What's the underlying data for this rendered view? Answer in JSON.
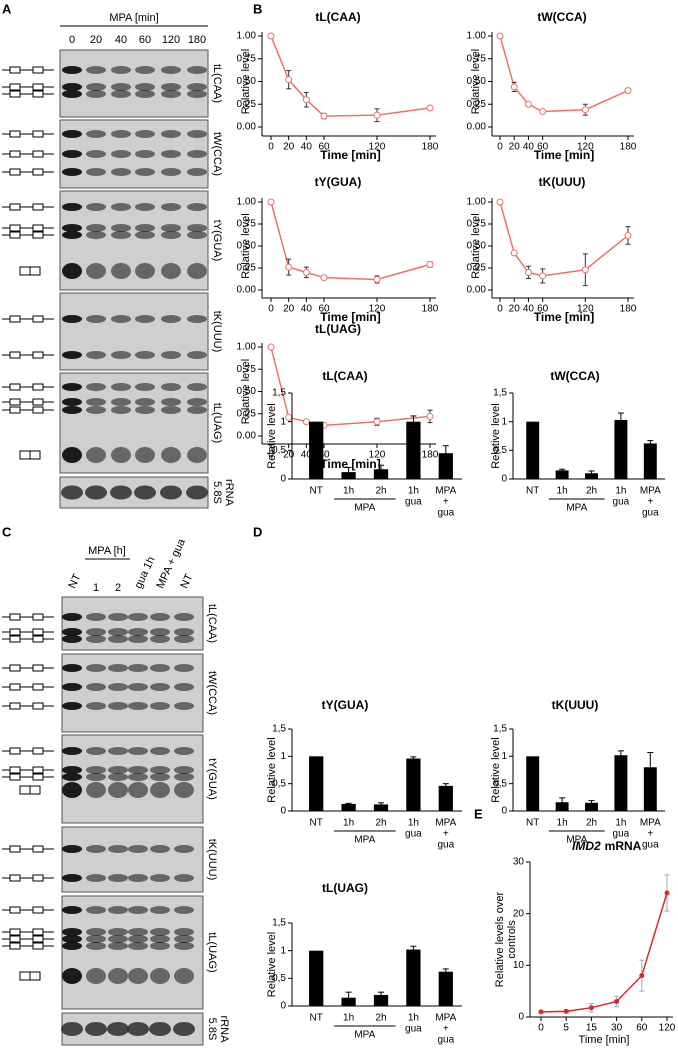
{
  "panel_labels": [
    "A",
    "B",
    "C",
    "D",
    "E"
  ],
  "blots_a": {
    "header": "MPA [min]",
    "lanes": [
      "0",
      "20",
      "40",
      "60",
      "120",
      "180"
    ],
    "bands": [
      [
        "tL(CAA)"
      ],
      [
        "tW(CCA)"
      ],
      [
        "tY(GUA)"
      ],
      [
        "tK(UUU)"
      ],
      [
        "tL(UAG)"
      ],
      [
        "5.8S",
        "rRNA"
      ]
    ]
  },
  "blots_c": {
    "header": "MPA [h]",
    "lanes": [
      "NT",
      "1",
      "2",
      "gua 1h",
      "MPA + gua",
      "NT"
    ],
    "bands": [
      [
        "tL(CAA)"
      ],
      [
        "tW(CCA)"
      ],
      [
        "tY(GUA)"
      ],
      [
        "tK(UUU)"
      ],
      [
        "tL(UAG)"
      ],
      [
        "5.8S",
        "rRNA"
      ]
    ]
  },
  "chart_data": [
    {
      "type": "line",
      "title": "tL(CAA)",
      "xlabel": "Time [min]",
      "ylabel": "Relative level",
      "x": [
        0,
        20,
        40,
        60,
        120,
        180
      ],
      "series": [
        {
          "color": "#e8736b",
          "values": [
            1.0,
            0.52,
            0.3,
            0.12,
            0.13,
            0.21
          ],
          "errors": [
            0,
            0.1,
            0.08,
            0.03,
            0.07,
            0.02
          ]
        }
      ],
      "xlim": [
        0,
        180
      ],
      "ylim": [
        0,
        1
      ],
      "xticks": [
        0,
        20,
        40,
        60,
        120,
        180
      ],
      "yticks": [
        {
          "value": 0,
          "label": "0.00"
        },
        {
          "value": 0.25,
          "label": "0.25"
        },
        {
          "value": 0.5,
          "label": "0.50"
        },
        {
          "value": 0.75,
          "label": "0.75"
        },
        {
          "value": 1,
          "label": "1.00"
        }
      ]
    },
    {
      "type": "line",
      "title": "tW(CCA)",
      "xlabel": "Time [min]",
      "ylabel": "Relative level",
      "x": [
        0,
        20,
        40,
        60,
        120,
        180
      ],
      "series": [
        {
          "color": "#e8736b",
          "values": [
            1.0,
            0.44,
            0.25,
            0.17,
            0.19,
            0.4
          ],
          "errors": [
            0,
            0.05,
            0.02,
            0.02,
            0.06,
            0.02
          ]
        }
      ],
      "xlim": [
        0,
        180
      ],
      "ylim": [
        0,
        1
      ],
      "xticks": [
        0,
        20,
        40,
        60,
        120,
        180
      ],
      "yticks": [
        {
          "value": 0,
          "label": "0.00"
        },
        {
          "value": 0.25,
          "label": "0.25"
        },
        {
          "value": 0.5,
          "label": "0.50"
        },
        {
          "value": 0.75,
          "label": "0.75"
        },
        {
          "value": 1,
          "label": "1.00"
        }
      ]
    },
    {
      "type": "line",
      "title": "tY(GUA)",
      "xlabel": "Time [min]",
      "ylabel": "Relative level",
      "x": [
        0,
        20,
        40,
        60,
        120,
        180
      ],
      "series": [
        {
          "color": "#e8736b",
          "values": [
            1.0,
            0.26,
            0.2,
            0.14,
            0.12,
            0.29
          ],
          "errors": [
            0,
            0.09,
            0.06,
            0.01,
            0.04,
            0.03
          ]
        }
      ],
      "xlim": [
        0,
        180
      ],
      "ylim": [
        0,
        1
      ],
      "xticks": [
        0,
        20,
        40,
        60,
        120,
        180
      ],
      "yticks": [
        {
          "value": 0,
          "label": "0.00"
        },
        {
          "value": 0.25,
          "label": "0.25"
        },
        {
          "value": 0.5,
          "label": "0.50"
        },
        {
          "value": 0.75,
          "label": "0.75"
        },
        {
          "value": 1,
          "label": "1.00"
        }
      ]
    },
    {
      "type": "line",
      "title": "tK(UUU)",
      "xlabel": "Time [min]",
      "ylabel": "Relative level",
      "x": [
        0,
        20,
        40,
        60,
        120,
        180
      ],
      "series": [
        {
          "color": "#e8736b",
          "values": [
            1.0,
            0.42,
            0.2,
            0.16,
            0.23,
            0.62
          ],
          "errors": [
            0,
            0.02,
            0.07,
            0.08,
            0.18,
            0.1
          ]
        }
      ],
      "xlim": [
        0,
        180
      ],
      "ylim": [
        0,
        1
      ],
      "xticks": [
        0,
        20,
        40,
        60,
        120,
        180
      ],
      "yticks": [
        {
          "value": 0,
          "label": "0.00"
        },
        {
          "value": 0.25,
          "label": "0.25"
        },
        {
          "value": 0.5,
          "label": "0.50"
        },
        {
          "value": 0.75,
          "label": "0.75"
        },
        {
          "value": 1,
          "label": "1.00"
        }
      ]
    },
    {
      "type": "line",
      "title": "tL(UAG)",
      "xlabel": "Time [min]",
      "ylabel": "Relative level",
      "x": [
        0,
        20,
        40,
        60,
        120,
        180
      ],
      "series": [
        {
          "color": "#e8736b",
          "values": [
            1.0,
            0.21,
            0.16,
            0.12,
            0.16,
            0.22
          ],
          "errors": [
            0,
            0.01,
            0.02,
            0.02,
            0.04,
            0.07
          ]
        }
      ],
      "xlim": [
        0,
        180
      ],
      "ylim": [
        0,
        1
      ],
      "xticks": [
        0,
        20,
        40,
        60,
        120,
        180
      ],
      "yticks": [
        {
          "value": 0,
          "label": "0.00"
        },
        {
          "value": 0.25,
          "label": "0.25"
        },
        {
          "value": 0.5,
          "label": "0.50"
        },
        {
          "value": 0.75,
          "label": "0.75"
        },
        {
          "value": 1,
          "label": "1.00"
        }
      ]
    },
    {
      "type": "bar",
      "title": "tL(CAA)",
      "ylabel": "Relative level",
      "categories": [
        [
          "NT"
        ],
        [
          "1h"
        ],
        [
          "2h"
        ],
        [
          "1h",
          "gua"
        ],
        [
          "MPA",
          "+",
          "gua"
        ]
      ],
      "group_label": "MPA",
      "values": [
        1,
        0.12,
        0.17,
        1.0,
        0.45
      ],
      "errors": [
        0,
        0.08,
        0.07,
        0.1,
        0.13
      ],
      "color": "#000000",
      "ylim": [
        0,
        1.5
      ],
      "yticks": [
        0,
        {
          "value": 0.5,
          "label": "0,5"
        },
        1,
        {
          "value": 1.5,
          "label": "1,5"
        }
      ]
    },
    {
      "type": "bar",
      "title": "tW(CCA)",
      "ylabel": "Relative level",
      "categories": [
        [
          "NT"
        ],
        [
          "1h"
        ],
        [
          "2h"
        ],
        [
          "1h",
          "gua"
        ],
        [
          "MPA",
          "+",
          "gua"
        ]
      ],
      "group_label": "MPA",
      "values": [
        1,
        0.15,
        0.1,
        1.03,
        0.62
      ],
      "errors": [
        0,
        0.02,
        0.04,
        0.12,
        0.05
      ],
      "color": "#000000",
      "ylim": [
        0,
        1.5
      ],
      "yticks": [
        0,
        {
          "value": 0.5,
          "label": "0,5"
        },
        1,
        {
          "value": 1.5,
          "label": "1,5"
        }
      ]
    },
    {
      "type": "bar",
      "title": "tY(GUA)",
      "ylabel": "Relative level",
      "categories": [
        [
          "NT"
        ],
        [
          "1h"
        ],
        [
          "2h"
        ],
        [
          "1h",
          "gua"
        ],
        [
          "MPA",
          "+",
          "gua"
        ]
      ],
      "group_label": "MPA",
      "values": [
        1,
        0.13,
        0.12,
        0.96,
        0.46
      ],
      "errors": [
        0,
        0.01,
        0.03,
        0.03,
        0.04
      ],
      "color": "#000000",
      "ylim": [
        0,
        1.5
      ],
      "yticks": [
        0,
        {
          "value": 0.5,
          "label": "0,5"
        },
        1,
        {
          "value": 1.5,
          "label": "1,5"
        }
      ]
    },
    {
      "type": "bar",
      "title": "tK(UUU)",
      "ylabel": "Relative level",
      "categories": [
        [
          "NT"
        ],
        [
          "1h"
        ],
        [
          "2h"
        ],
        [
          "1h",
          "gua"
        ],
        [
          "MPA",
          "+",
          "gua"
        ]
      ],
      "group_label": "MPA",
      "values": [
        1,
        0.16,
        0.15,
        1.02,
        0.8
      ],
      "errors": [
        0,
        0.08,
        0.04,
        0.08,
        0.27
      ],
      "color": "#000000",
      "ylim": [
        0,
        1.5
      ],
      "yticks": [
        0,
        {
          "value": 0.5,
          "label": "0,5"
        },
        1,
        {
          "value": 1.5,
          "label": "1,5"
        }
      ]
    },
    {
      "type": "bar",
      "title": "tL(UAG)",
      "ylabel": "Relative level",
      "categories": [
        [
          "NT"
        ],
        [
          "1h"
        ],
        [
          "2h"
        ],
        [
          "1h",
          "gua"
        ],
        [
          "MPA",
          "+",
          "gua"
        ]
      ],
      "group_label": "MPA",
      "values": [
        1,
        0.15,
        0.2,
        1.02,
        0.62
      ],
      "errors": [
        0,
        0.1,
        0.05,
        0.06,
        0.05
      ],
      "color": "#000000",
      "ylim": [
        0,
        1.5
      ],
      "yticks": [
        0,
        {
          "value": 0.5,
          "label": "0,5"
        },
        1,
        {
          "value": 1.5,
          "label": "1,5"
        }
      ]
    },
    {
      "type": "line",
      "title_parts": [
        "IMD2",
        "mRNA"
      ],
      "xlabel": "Time [min]",
      "ylabel_lines": [
        "Relative levels over",
        "controls"
      ],
      "categories": [
        "0",
        "5",
        "15",
        "30",
        "60",
        "120"
      ],
      "series": [
        {
          "color": "#d42a2a",
          "values": [
            1,
            1.1,
            1.8,
            3,
            8,
            24
          ],
          "errors": [
            0.2,
            0.3,
            0.8,
            1,
            3,
            3.5
          ]
        }
      ],
      "ylim": [
        0,
        30
      ],
      "yticks": [
        0,
        10,
        20,
        30
      ]
    }
  ]
}
